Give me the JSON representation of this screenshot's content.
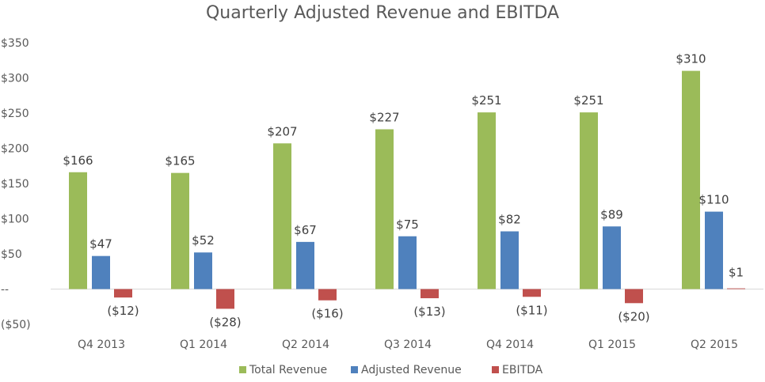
{
  "chart_data": {
    "type": "bar",
    "title": "Quarterly Adjusted Revenue and EBITDA",
    "xlabel": "",
    "ylabel": "",
    "categories": [
      "Q4 2013",
      "Q1 2014",
      "Q2 2014",
      "Q3 2014",
      "Q4 2014",
      "Q1 2015",
      "Q2 2015"
    ],
    "ylim": [
      -50,
      350
    ],
    "yticks": [
      -50,
      0,
      50,
      100,
      150,
      200,
      250,
      300,
      350
    ],
    "ytick_labels": [
      "($50)",
      "--",
      "$50",
      "$100",
      "$150",
      "$200",
      "$250",
      "$300",
      "$350"
    ],
    "grid": false,
    "legend_position": "bottom",
    "series": [
      {
        "name": "Total Revenue",
        "color": "#9BBB59",
        "values": [
          166,
          165,
          207,
          227,
          251,
          251,
          310
        ],
        "labels": [
          "$166",
          "$165",
          "$207",
          "$227",
          "$251",
          "$251",
          "$310"
        ]
      },
      {
        "name": "Adjusted Revenue",
        "color": "#4F81BD",
        "values": [
          47,
          52,
          67,
          75,
          82,
          89,
          110
        ],
        "labels": [
          "$47",
          "$52",
          "$67",
          "$75",
          "$82",
          "$89",
          "$110"
        ]
      },
      {
        "name": "EBITDA",
        "color": "#C0504D",
        "values": [
          -12,
          -28,
          -16,
          -13,
          -11,
          -20,
          1
        ],
        "labels": [
          "($12)",
          "($28)",
          "($16)",
          "($13)",
          "($11)",
          "($20)",
          "$1"
        ]
      }
    ]
  }
}
